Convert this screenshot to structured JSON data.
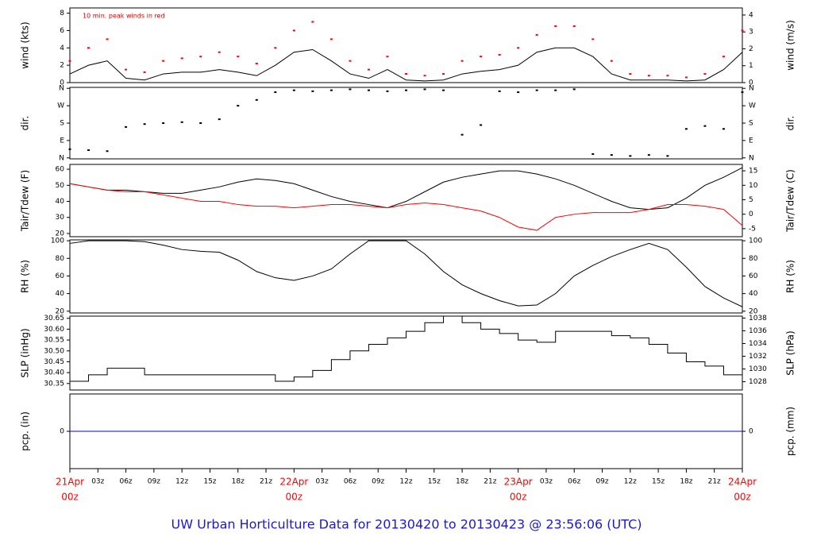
{
  "page_title": "UW Urban Horticulture Data for 20130420  to  20130423 @ 23:56:06  (UTC)",
  "chart_data": [
    {
      "type": "line",
      "ylabel": "wind (kts)",
      "y2label": "wind (m/s)",
      "annotation": "10 min. peak winds in red",
      "xlim": [
        0,
        72
      ],
      "ylim": [
        0,
        8.6
      ],
      "yticks": [
        0,
        2,
        4,
        6,
        8
      ],
      "y2lim": [
        0,
        4.42
      ],
      "y2ticks": [
        0,
        1,
        2,
        3,
        4
      ],
      "x": [
        0,
        2,
        4,
        6,
        8,
        10,
        12,
        14,
        16,
        18,
        20,
        22,
        24,
        26,
        28,
        30,
        32,
        34,
        36,
        38,
        40,
        42,
        44,
        46,
        48,
        50,
        52,
        54,
        56,
        58,
        60,
        62,
        64,
        66,
        68,
        70,
        72
      ],
      "series": [
        {
          "name": "wind",
          "color": "#000000",
          "marker": "line",
          "values": [
            1,
            2,
            2.5,
            0.5,
            0.3,
            1,
            1.2,
            1.2,
            1.5,
            1.2,
            0.8,
            2,
            3.5,
            3.8,
            2.5,
            1,
            0.5,
            1.5,
            0.3,
            0.2,
            0.3,
            1,
            1.3,
            1.5,
            2,
            3.5,
            4,
            4,
            3,
            1,
            0.3,
            0.3,
            0.3,
            0.2,
            0.3,
            1.5,
            3.5
          ]
        },
        {
          "name": "peak",
          "color": "#ff0000",
          "marker": "dot",
          "values": [
            2.5,
            4,
            5,
            1.5,
            1.2,
            2.5,
            2.8,
            3,
            3.5,
            3,
            2.2,
            4,
            6,
            7,
            5,
            2.5,
            1.5,
            3,
            1,
            0.8,
            1,
            2.5,
            3,
            3.2,
            4,
            5.5,
            6.5,
            6.5,
            5,
            2.5,
            1,
            0.8,
            0.8,
            0.6,
            1,
            3,
            6
          ]
        }
      ]
    },
    {
      "type": "scatter",
      "ylabel": "dir.",
      "y2label": "dir.",
      "xlim": [
        0,
        72
      ],
      "ylim": [
        -5,
        365
      ],
      "yticks": [
        {
          "value": 0,
          "label": "N"
        },
        {
          "value": 90,
          "label": "E"
        },
        {
          "value": 180,
          "label": "S"
        },
        {
          "value": 270,
          "label": "W"
        },
        {
          "value": 360,
          "label": "N"
        }
      ],
      "y2lim": [
        -5,
        365
      ],
      "y2ticks": [
        {
          "value": 0,
          "label": "N"
        },
        {
          "value": 90,
          "label": "E"
        },
        {
          "value": 180,
          "label": "S"
        },
        {
          "value": 270,
          "label": "W"
        },
        {
          "value": 360,
          "label": "N"
        }
      ],
      "x": [
        0,
        2,
        4,
        6,
        8,
        10,
        12,
        14,
        16,
        18,
        20,
        22,
        24,
        26,
        28,
        30,
        32,
        34,
        36,
        38,
        40,
        42,
        44,
        46,
        48,
        50,
        52,
        54,
        56,
        58,
        60,
        62,
        64,
        66,
        68,
        70,
        72
      ],
      "series": [
        {
          "name": "dir",
          "color": "#000000",
          "marker": "dot",
          "values": [
            45,
            40,
            35,
            160,
            175,
            180,
            185,
            180,
            200,
            270,
            300,
            340,
            350,
            345,
            350,
            355,
            350,
            345,
            350,
            355,
            350,
            120,
            170,
            345,
            340,
            350,
            350,
            355,
            20,
            15,
            10,
            15,
            10,
            150,
            165,
            150,
            340
          ]
        }
      ]
    },
    {
      "type": "line",
      "ylabel": "Tair/Tdew (F)",
      "y2label": "Tair/Tdew (C)",
      "xlim": [
        0,
        72
      ],
      "ylim": [
        18,
        63
      ],
      "yticks": [
        20,
        30,
        40,
        50,
        60
      ],
      "y2lim": [
        -7.78,
        17.22
      ],
      "y2ticks": [
        -5,
        0,
        5,
        10,
        15
      ],
      "x": [
        0,
        2,
        4,
        6,
        8,
        10,
        12,
        14,
        16,
        18,
        20,
        22,
        24,
        26,
        28,
        30,
        32,
        34,
        36,
        38,
        40,
        42,
        44,
        46,
        48,
        50,
        52,
        54,
        56,
        58,
        60,
        62,
        64,
        66,
        68,
        70,
        72
      ],
      "series": [
        {
          "name": "Tair",
          "color": "#000000",
          "marker": "line",
          "values": [
            51,
            49,
            47,
            47,
            46,
            45,
            45,
            47,
            49,
            52,
            54,
            53,
            51,
            47,
            43,
            40,
            38,
            36,
            40,
            46,
            52,
            55,
            57,
            59,
            59,
            57,
            54,
            50,
            45,
            40,
            36,
            35,
            36,
            42,
            50,
            55,
            61
          ]
        },
        {
          "name": "Tdew",
          "color": "#ff0000",
          "marker": "line",
          "values": [
            51,
            49,
            47,
            46,
            46,
            44,
            42,
            40,
            40,
            38,
            37,
            37,
            36,
            37,
            38,
            38,
            37,
            36,
            38,
            39,
            38,
            36,
            34,
            30,
            24,
            22,
            30,
            32,
            33,
            33,
            33,
            35,
            38,
            38,
            37,
            35,
            25
          ]
        }
      ]
    },
    {
      "type": "line",
      "ylabel": "RH (%)",
      "y2label": "RH (%)",
      "xlim": [
        0,
        72
      ],
      "ylim": [
        18,
        101
      ],
      "yticks": [
        20,
        40,
        60,
        80,
        100
      ],
      "y2lim": [
        18,
        101
      ],
      "y2ticks": [
        20,
        40,
        60,
        80,
        100
      ],
      "x": [
        0,
        2,
        4,
        6,
        8,
        10,
        12,
        14,
        16,
        18,
        20,
        22,
        24,
        26,
        28,
        30,
        32,
        34,
        36,
        38,
        40,
        42,
        44,
        46,
        48,
        50,
        52,
        54,
        56,
        58,
        60,
        62,
        64,
        66,
        68,
        70,
        72
      ],
      "series": [
        {
          "name": "RH",
          "color": "#000000",
          "marker": "line",
          "values": [
            97,
            100,
            100,
            100,
            99,
            95,
            90,
            88,
            87,
            78,
            65,
            58,
            55,
            60,
            68,
            85,
            100,
            100,
            100,
            85,
            65,
            50,
            40,
            32,
            26,
            27,
            40,
            60,
            72,
            82,
            90,
            97,
            90,
            70,
            48,
            35,
            25
          ]
        }
      ]
    },
    {
      "type": "line",
      "ylabel": "SLP (inHg)",
      "y2label": "SLP (hPa)",
      "xlim": [
        0,
        72
      ],
      "ylim": [
        30.32,
        30.66
      ],
      "yticks": [
        30.35,
        {
          "value": 30.4,
          "label": "30.40"
        },
        30.45,
        {
          "value": 30.5,
          "label": "30.50"
        },
        30.55,
        {
          "value": 30.6,
          "label": "30.60"
        },
        30.65
      ],
      "y2lim": [
        1026.7,
        1038.3
      ],
      "y2ticks": [
        1028,
        1030,
        1032,
        1034,
        1036,
        1038
      ],
      "x": [
        0,
        2,
        4,
        6,
        8,
        10,
        12,
        14,
        16,
        18,
        20,
        22,
        24,
        26,
        28,
        30,
        32,
        34,
        36,
        38,
        40,
        42,
        44,
        46,
        48,
        50,
        52,
        54,
        56,
        58,
        60,
        62,
        64,
        66,
        68,
        70,
        72
      ],
      "series": [
        {
          "name": "SLP",
          "color": "#000000",
          "marker": "step",
          "values": [
            30.36,
            30.39,
            30.42,
            30.42,
            30.39,
            30.39,
            30.39,
            30.39,
            30.39,
            30.39,
            30.39,
            30.36,
            30.38,
            30.41,
            30.46,
            30.5,
            30.53,
            30.56,
            30.59,
            30.63,
            30.66,
            30.63,
            30.6,
            30.58,
            30.55,
            30.54,
            30.59,
            30.59,
            30.59,
            30.57,
            30.56,
            30.53,
            30.49,
            30.45,
            30.43,
            30.39,
            30.34
          ]
        }
      ]
    },
    {
      "type": "line",
      "ylabel": "pcp. (in)",
      "y2label": "pcp. (mm)",
      "xlim": [
        0,
        72
      ],
      "ylim": [
        -1,
        1
      ],
      "yticks": [
        0
      ],
      "y2lim": [
        -1,
        1
      ],
      "y2ticks": [
        0
      ],
      "x": [
        0,
        72
      ],
      "series": [
        {
          "name": "pcp",
          "color": "#0000ff",
          "marker": "line",
          "values": [
            0,
            0
          ]
        }
      ],
      "date_color": "#ff0000",
      "xticks": [
        {
          "value": 0,
          "label": "00z",
          "date": "21Apr"
        },
        {
          "value": 3,
          "label": "03z"
        },
        {
          "value": 6,
          "label": "06z"
        },
        {
          "value": 9,
          "label": "09z"
        },
        {
          "value": 12,
          "label": "12z"
        },
        {
          "value": 15,
          "label": "15z"
        },
        {
          "value": 18,
          "label": "18z"
        },
        {
          "value": 21,
          "label": "21z"
        },
        {
          "value": 24,
          "label": "00z",
          "date": "22Apr"
        },
        {
          "value": 27,
          "label": "03z"
        },
        {
          "value": 30,
          "label": "06z"
        },
        {
          "value": 33,
          "label": "09z"
        },
        {
          "value": 36,
          "label": "12z"
        },
        {
          "value": 39,
          "label": "15z"
        },
        {
          "value": 42,
          "label": "18z"
        },
        {
          "value": 45,
          "label": "21z"
        },
        {
          "value": 48,
          "label": "00z",
          "date": "23Apr"
        },
        {
          "value": 51,
          "label": "03z"
        },
        {
          "value": 54,
          "label": "06z"
        },
        {
          "value": 57,
          "label": "09z"
        },
        {
          "value": 60,
          "label": "12z"
        },
        {
          "value": 63,
          "label": "15z"
        },
        {
          "value": 66,
          "label": "18z"
        },
        {
          "value": 69,
          "label": "21z"
        },
        {
          "value": 72,
          "label": "00z",
          "date": "24Apr"
        }
      ]
    }
  ]
}
